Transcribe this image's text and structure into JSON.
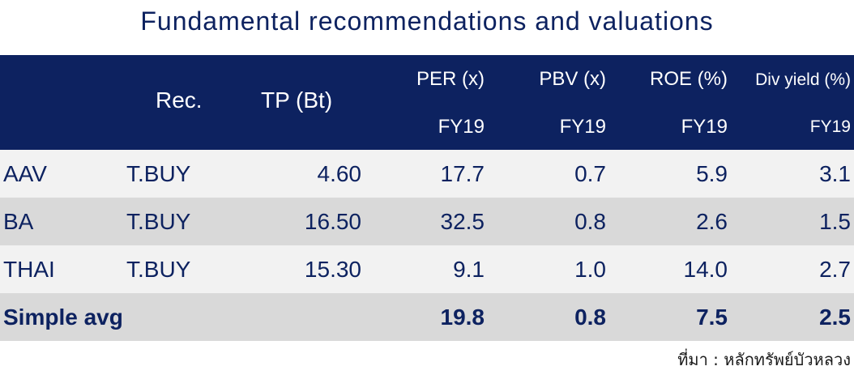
{
  "title": "Fundamental recommendations and valuations",
  "header": {
    "rec": "Rec.",
    "tp": "TP (Bt)",
    "per": "PER (x)",
    "pbv": "PBV (x)",
    "roe": "ROE (%)",
    "div": "Div yield (%)",
    "fy_per": "FY19",
    "fy_pbv": "FY19",
    "fy_roe": "FY19",
    "fy_div": "FY19"
  },
  "rows": [
    {
      "ticker": "AAV",
      "rec": "T.BUY",
      "tp": "4.60",
      "per": "17.7",
      "pbv": "0.7",
      "roe": "5.9",
      "div": "3.1"
    },
    {
      "ticker": "BA",
      "rec": "T.BUY",
      "tp": "16.50",
      "per": "32.5",
      "pbv": "0.8",
      "roe": "2.6",
      "div": "1.5"
    },
    {
      "ticker": "THAI",
      "rec": "T.BUY",
      "tp": "15.30",
      "per": "9.1",
      "pbv": "1.0",
      "roe": "14.0",
      "div": "2.7"
    }
  ],
  "average": {
    "label": "Simple avg",
    "per": "19.8",
    "pbv": "0.8",
    "roe": "7.5",
    "div": "2.5"
  },
  "source": "ที่มา : หลักทรัพย์บัวหลวง",
  "colors": {
    "header_bg": "#0d2260",
    "row_light": "#f2f2f2",
    "row_dark": "#d9d9d9",
    "text": "#0d2260"
  }
}
